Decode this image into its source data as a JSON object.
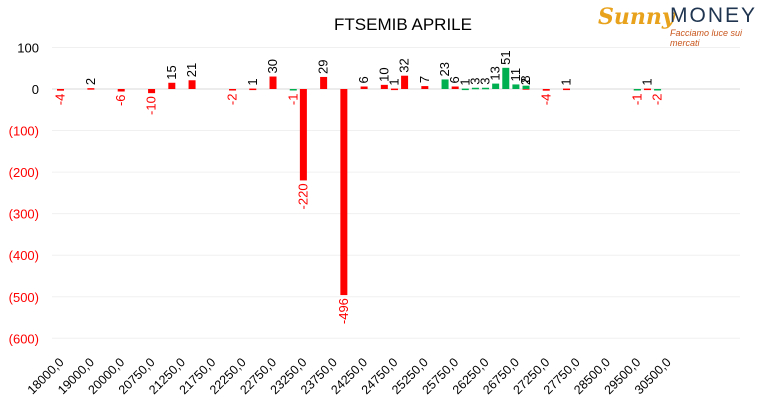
{
  "logo": {
    "sun_text": "Sunny",
    "money_text": "MONEY",
    "tagline": "Facciamo luce sui mercati"
  },
  "chart_data": {
    "type": "bar",
    "title": "FTSEMIB APRILE",
    "xlabel": "",
    "ylabel": "",
    "ylim": [
      -600,
      100
    ],
    "grid": true,
    "legend": "none",
    "y_tick_labels": [
      "100",
      "0",
      "(100)",
      "(200)",
      "(300)",
      "(400)",
      "(500)",
      "(600)"
    ],
    "y_tick_values": [
      100,
      0,
      -100,
      -200,
      -300,
      -400,
      -500,
      -600
    ],
    "x_tick_labels": [
      "18000,0",
      "19000,0",
      "20000,0",
      "20750,0",
      "21250,0",
      "21750,0",
      "22250,0",
      "22750,0",
      "23250,0",
      "23750,0",
      "24250,0",
      "24750,0",
      "25250,0",
      "25750,0",
      "26250,0",
      "26750,0",
      "27250,0",
      "27750,0",
      "28500,0",
      "29500,0",
      "30500,0"
    ],
    "colors": {
      "red": "#ff0000",
      "green": "#00b050",
      "positive_label": "#000000",
      "negative_label": "#ff0000",
      "axis_text": "#000000",
      "neg_axis_text": "#ff0000"
    },
    "red_bars": [
      {
        "slot": 1,
        "value": -4
      },
      {
        "slot": 4,
        "value": 2
      },
      {
        "slot": 7,
        "value": -6
      },
      {
        "slot": 10,
        "value": -10
      },
      {
        "slot": 12,
        "value": 15
      },
      {
        "slot": 14,
        "value": 21
      },
      {
        "slot": 18,
        "value": -2
      },
      {
        "slot": 20,
        "value": 1
      },
      {
        "slot": 22,
        "value": 30
      },
      {
        "slot": 25,
        "value": -220
      },
      {
        "slot": 27,
        "value": 29
      },
      {
        "slot": 29,
        "value": -496
      },
      {
        "slot": 31,
        "value": 6
      },
      {
        "slot": 33,
        "value": 10
      },
      {
        "slot": 34,
        "value": 1
      },
      {
        "slot": 35,
        "value": 32
      },
      {
        "slot": 37,
        "value": 7
      },
      {
        "slot": 40,
        "value": 6
      },
      {
        "slot": 47,
        "value": 2
      },
      {
        "slot": 49,
        "value": -4
      },
      {
        "slot": 51,
        "value": 1
      },
      {
        "slot": 58,
        "value": -1
      },
      {
        "slot": 59,
        "value": 1
      }
    ],
    "green_bars": [
      {
        "slot": 24,
        "value": -1
      },
      {
        "slot": 39,
        "value": 23
      },
      {
        "slot": 41,
        "value": 1
      },
      {
        "slot": 42,
        "value": 3
      },
      {
        "slot": 43,
        "value": 3
      },
      {
        "slot": 44,
        "value": 13
      },
      {
        "slot": 45,
        "value": 51
      },
      {
        "slot": 46,
        "value": 11
      },
      {
        "slot": 47,
        "value": 8
      },
      {
        "slot": 58,
        "value": -1
      },
      {
        "slot": 60,
        "value": -2
      }
    ]
  }
}
